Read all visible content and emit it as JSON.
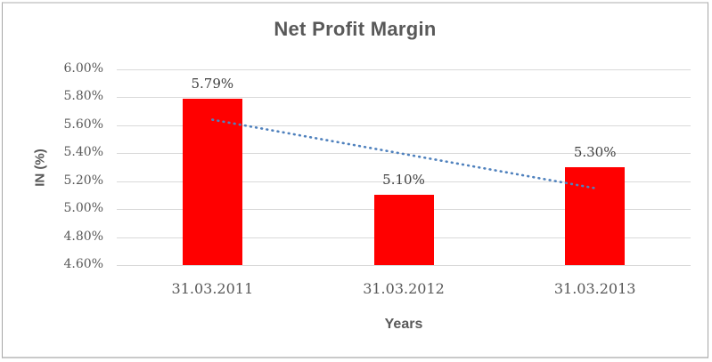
{
  "chart_data": {
    "type": "bar",
    "title": "Net Profit Margin",
    "xlabel": "Years",
    "ylabel": "IN (%)",
    "categories": [
      "31.03.2011",
      "31.03.2012",
      "31.03.2013"
    ],
    "values": [
      5.79,
      5.1,
      5.3
    ],
    "data_labels": [
      "5.79%",
      "5.10%",
      "5.30%"
    ],
    "ylim": [
      4.6,
      6.0
    ],
    "ytick_values": [
      6.0,
      5.8,
      5.6,
      5.4,
      5.2,
      5.0,
      4.8,
      4.6
    ],
    "ytick_labels": [
      "6.00%",
      "5.80%",
      "5.60%",
      "5.40%",
      "5.20%",
      "5.00%",
      "4.80%",
      "4.60%"
    ],
    "grid": true,
    "legend": "none",
    "bar_color": "#FF0000",
    "trendline": {
      "type": "linear",
      "line_style": "dotted",
      "color": "#4F81BD",
      "start_value": 5.64,
      "end_value": 5.15
    },
    "colors": {
      "gridline": "#D9D9D9",
      "axis_text": "#595959",
      "title_text": "#595959",
      "data_label_text": "#404040",
      "frame_border": "#A6A6A6",
      "background": "#FFFFFF"
    }
  }
}
